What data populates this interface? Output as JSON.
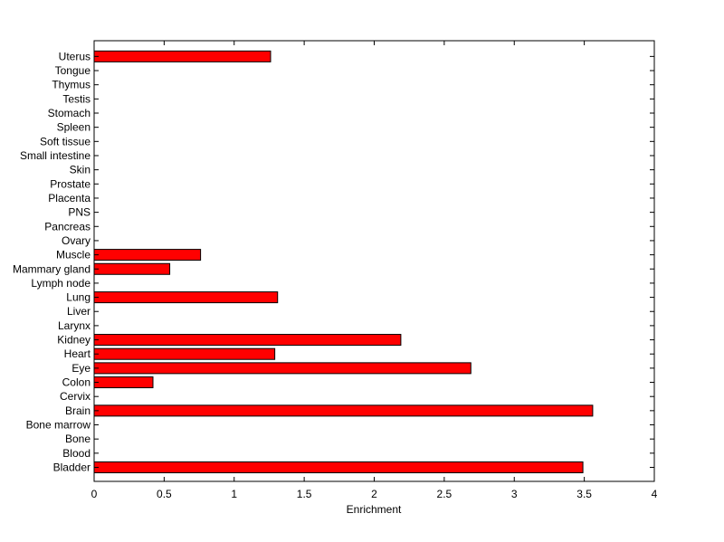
{
  "chart_data": {
    "type": "bar",
    "orientation": "horizontal",
    "title": "",
    "xlabel": "Enrichment",
    "ylabel": "",
    "xlim": [
      0,
      4
    ],
    "xticks": [
      "0",
      "0.5",
      "1",
      "1.5",
      "2",
      "2.5",
      "3",
      "3.5",
      "4"
    ],
    "grid": false,
    "bar_color": "#ff0000",
    "categories": [
      "Bladder",
      "Blood",
      "Bone",
      "Bone marrow",
      "Brain",
      "Cervix",
      "Colon",
      "Eye",
      "Heart",
      "Kidney",
      "Larynx",
      "Liver",
      "Lung",
      "Lymph node",
      "Mammary gland",
      "Muscle",
      "Ovary",
      "Pancreas",
      "PNS",
      "Placenta",
      "Prostate",
      "Skin",
      "Small intestine",
      "Soft tissue",
      "Spleen",
      "Stomach",
      "Testis",
      "Thymus",
      "Tongue",
      "Uterus"
    ],
    "values": [
      3.49,
      0,
      0,
      0,
      3.56,
      0,
      0.42,
      2.69,
      1.29,
      2.19,
      0,
      0,
      1.31,
      0,
      0.54,
      0.76,
      0,
      0,
      0,
      0,
      0,
      0,
      0,
      0,
      0,
      0,
      0,
      0,
      0,
      1.26
    ]
  }
}
